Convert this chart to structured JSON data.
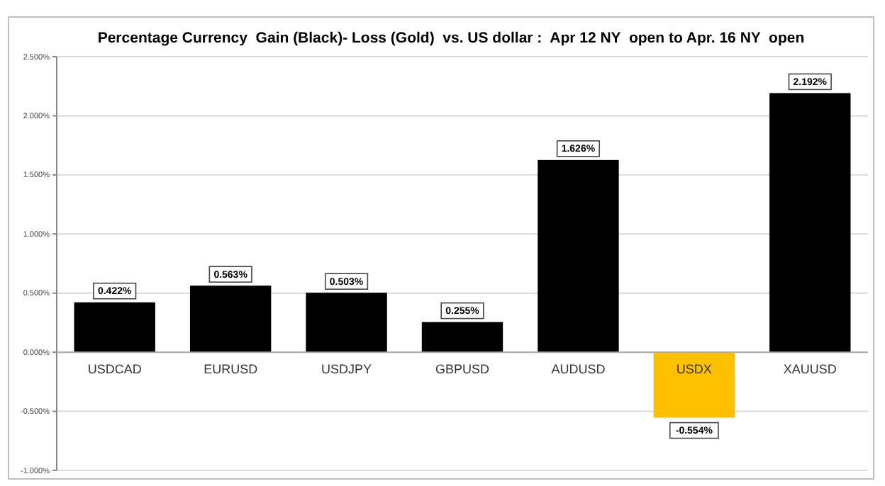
{
  "chart_data": {
    "type": "bar",
    "title": "Percentage Currency  Gain (Black)- Loss (Gold)  vs. US dollar :  Apr 12 NY  open to Apr. 16 NY  open",
    "categories": [
      "USDCAD",
      "EURUSD",
      "USDJPY",
      "GBPUSD",
      "AUDUSD",
      "USDX",
      "XAUUSD"
    ],
    "values": [
      0.422,
      0.563,
      0.503,
      0.255,
      1.626,
      -0.554,
      2.192
    ],
    "colors": [
      "#000000",
      "#000000",
      "#000000",
      "#000000",
      "#000000",
      "#ffc000",
      "#000000"
    ],
    "value_labels": [
      "0.422%",
      "0.563%",
      "0.503%",
      "0.255%",
      "1.626%",
      "-0.554%",
      "2.192%"
    ],
    "ylim": [
      -1,
      2.5
    ],
    "yticks": [
      {
        "value": -1,
        "label": "-1.000%"
      },
      {
        "value": -0.5,
        "label": "-0.500%"
      },
      {
        "value": 0,
        "label": "0.000%"
      },
      {
        "value": 0.5,
        "label": "0.500%"
      },
      {
        "value": 1,
        "label": "1.000%"
      },
      {
        "value": 1.5,
        "label": "1.500%"
      },
      {
        "value": 2,
        "label": "2.000%"
      },
      {
        "value": 2.5,
        "label": "2.500%"
      }
    ],
    "grid": "y"
  }
}
